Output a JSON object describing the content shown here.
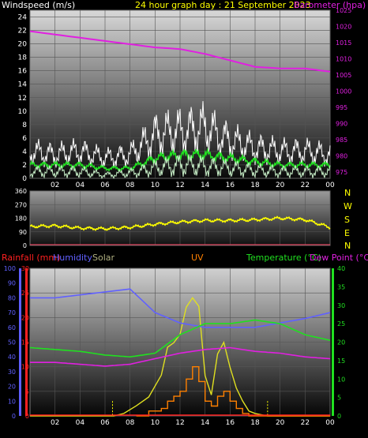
{
  "header": {
    "left_label": "Windspeed (m/s)",
    "center_label": "24 hour graph day : 21 September 2023",
    "right_label": "Barometer (hpa)"
  },
  "panel3_header": {
    "rainfall": "Rainfall (mm)",
    "humidity": "Humidity",
    "solar": "Solar",
    "uv": "UV",
    "temperature": "Temperature (°C)",
    "dewpoint": "Dew Point (°C)"
  },
  "compass": [
    "N",
    "W",
    "S",
    "E",
    "N"
  ],
  "colors": {
    "wind_gust": "#ffffff",
    "wind_avg": "#20e020",
    "wind_min": "#c8f0c8",
    "barometer": "#e020e0",
    "direction": "#ffff00",
    "rainfall": "#ff2020",
    "humidity": "#6060ff",
    "solar": "#e0e020",
    "uv": "#ff8000",
    "temperature": "#20e020",
    "dewpoint": "#e020e0",
    "grid": "#555555"
  },
  "chart_data": [
    {
      "type": "line",
      "title": "24 hour graph day : 21 September 2023",
      "x_ticks": [
        "02",
        "04",
        "06",
        "08",
        "10",
        "12",
        "14",
        "16",
        "18",
        "20",
        "22",
        "00"
      ],
      "left_axis": {
        "label": "Windspeed (m/s)",
        "ylim": [
          0,
          25
        ],
        "ticks": [
          0,
          2,
          4,
          6,
          8,
          10,
          12,
          14,
          16,
          18,
          20,
          22,
          24
        ]
      },
      "right_axis": {
        "label": "Barometer (hpa)",
        "ylim": [
          973,
          1025
        ],
        "ticks": [
          975,
          980,
          985,
          990,
          995,
          1000,
          1005,
          1010,
          1015,
          1020,
          1025
        ]
      },
      "x_hours": [
        0,
        2,
        4,
        6,
        8,
        10,
        12,
        14,
        16,
        18,
        20,
        22,
        24
      ],
      "series": [
        {
          "name": "Barometer (hpa)",
          "axis": "right",
          "values": [
            1018.5,
            1017.5,
            1016.5,
            1015.5,
            1014.5,
            1013.5,
            1013,
            1011.5,
            1009.5,
            1007.5,
            1007,
            1007,
            1006
          ]
        },
        {
          "name": "Windspeed (m/s)",
          "axis": "left",
          "values": [
            4,
            3.5,
            4,
            3,
            3.5,
            6.5,
            7,
            7.5,
            5.5,
            4.5,
            4,
            4,
            3.5
          ]
        },
        {
          "axis": "left",
          "values": [
            2,
            2,
            2,
            1.5,
            1.5,
            3,
            3.5,
            3.5,
            3,
            2.5,
            2,
            2,
            2
          ]
        },
        {
          "axis": "left",
          "values": [
            1,
            1,
            1,
            0.5,
            0.8,
            1.5,
            2,
            1.8,
            1.5,
            1.2,
            1,
            1,
            1
          ]
        }
      ]
    },
    {
      "type": "line",
      "x_ticks": [
        "02",
        "04",
        "06",
        "08",
        "10",
        "12",
        "14",
        "16",
        "18",
        "20",
        "22",
        "00"
      ],
      "left_axis": {
        "ylim": [
          0,
          360
        ],
        "ticks": [
          0,
          90,
          180,
          270,
          360
        ]
      },
      "x_hours": [
        0,
        2,
        4,
        6,
        8,
        10,
        12,
        14,
        16,
        18,
        20,
        22,
        24
      ],
      "series": [
        {
          "values": [
            125,
            130,
            115,
            110,
            120,
            140,
            155,
            165,
            165,
            170,
            180,
            170,
            120
          ]
        }
      ]
    },
    {
      "type": "line",
      "x_ticks": [
        "02",
        "04",
        "06",
        "08",
        "10",
        "12",
        "14",
        "16",
        "18",
        "20",
        "22",
        "00"
      ],
      "humidity_axis": {
        "label": "Humidity",
        "ylim": [
          0,
          100
        ],
        "ticks": [
          0,
          10,
          20,
          30,
          40,
          50,
          60,
          70,
          80,
          90,
          100
        ]
      },
      "rain_axis": {
        "label": "Rainfall (mm)",
        "ylim": [
          0,
          30
        ],
        "ticks": [
          0,
          5,
          10,
          15,
          20,
          25,
          30
        ]
      },
      "temp_axis": {
        "label": "Temperature (°C)",
        "ylim": [
          0,
          40
        ],
        "ticks": [
          0,
          5,
          10,
          15,
          20,
          25,
          30,
          35,
          40
        ]
      },
      "x_hours": [
        0,
        2,
        4,
        6,
        8,
        10,
        12,
        14,
        16,
        18,
        20,
        22,
        24
      ],
      "series": [
        {
          "name": "Humidity",
          "axis": "humidity",
          "values": [
            80,
            80,
            82,
            84,
            86,
            70,
            63,
            60,
            60,
            60,
            63,
            66,
            70
          ]
        },
        {
          "name": "Temperature (°C)",
          "axis": "temp",
          "values": [
            18.5,
            18,
            17.5,
            16.5,
            16,
            17,
            22,
            25,
            25,
            26,
            25,
            22,
            20.5
          ]
        },
        {
          "name": "Dew Point (°C)",
          "axis": "temp",
          "values": [
            14.5,
            14.5,
            14,
            13.5,
            14,
            15.5,
            17,
            18,
            18.5,
            17.5,
            17,
            16,
            15.5
          ]
        },
        {
          "name": "Rainfall (mm)",
          "axis": "rain",
          "values": [
            0,
            0,
            0,
            0,
            0,
            0,
            0,
            0,
            0,
            0,
            0,
            0,
            0
          ]
        }
      ],
      "solar_points": [
        [
          0,
          0
        ],
        [
          6.7,
          0
        ],
        [
          7.5,
          0.5
        ],
        [
          8.5,
          2
        ],
        [
          9.5,
          4
        ],
        [
          10.5,
          8
        ],
        [
          11,
          12
        ],
        [
          11.5,
          14
        ],
        [
          12,
          15
        ],
        [
          12.5,
          19
        ],
        [
          13,
          24
        ],
        [
          13.5,
          22
        ],
        [
          14,
          8
        ],
        [
          14.5,
          5
        ],
        [
          15,
          14
        ],
        [
          15.5,
          16
        ],
        [
          16,
          12
        ],
        [
          16.5,
          6
        ],
        [
          17,
          3
        ],
        [
          17.5,
          1
        ],
        [
          18,
          0.5
        ],
        [
          19,
          0
        ],
        [
          24,
          0
        ]
      ],
      "uv_steps": [
        [
          8.5,
          0
        ],
        [
          9.5,
          1
        ],
        [
          10.5,
          1.5
        ],
        [
          11,
          3
        ],
        [
          11.5,
          4
        ],
        [
          12,
          5
        ],
        [
          12.5,
          7.5
        ],
        [
          13,
          10
        ],
        [
          13.5,
          7
        ],
        [
          14,
          3
        ],
        [
          14.5,
          2
        ],
        [
          15,
          4
        ],
        [
          15.5,
          5
        ],
        [
          16,
          3
        ],
        [
          16.5,
          1.5
        ],
        [
          17,
          0.5
        ],
        [
          17.5,
          0
        ],
        [
          24,
          0
        ]
      ]
    }
  ]
}
